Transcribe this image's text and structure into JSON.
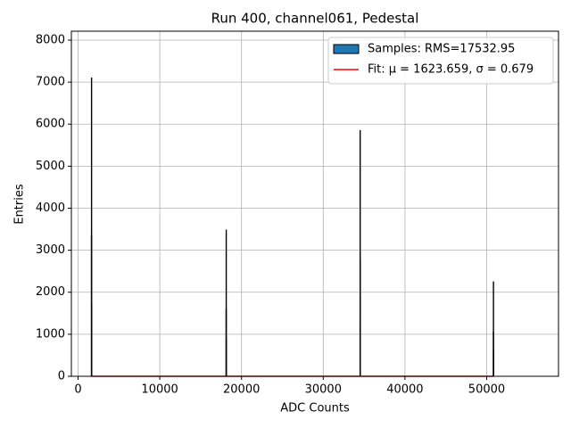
{
  "chart_data": {
    "type": "histogram",
    "title": "Run 400, channel061, Pedestal",
    "xlabel": "ADC Counts",
    "ylabel": "Entries",
    "bins": [
      1610,
      1618,
      1626,
      1634,
      18090,
      18098,
      18106,
      18114,
      34480,
      34488,
      34496,
      34504,
      50790,
      50798,
      50806,
      50814
    ],
    "series": [
      {
        "name": "Samples: RMS=17532.95",
        "type": "histogram",
        "color": "#1f77b4",
        "edgecolor": "#000000",
        "values": [
          3350,
          7100,
          1700,
          0,
          1600,
          3480,
          900,
          0,
          1350,
          5850,
          2800,
          0,
          1050,
          2250,
          600
        ]
      },
      {
        "name": "Fit: μ = 1623.659, σ = 0.679",
        "type": "line",
        "color": "#ff0000",
        "x": [
          1600,
          50800
        ],
        "values": [
          0,
          0
        ]
      }
    ],
    "xlim": [
      -820,
      58790
    ],
    "ylim": [
      0,
      8212
    ],
    "xticks": [
      0,
      10000,
      20000,
      30000,
      40000,
      50000
    ],
    "yticks": [
      0,
      1000,
      2000,
      3000,
      4000,
      5000,
      6000,
      7000,
      8000
    ],
    "grid": true,
    "legend": "upper right"
  }
}
